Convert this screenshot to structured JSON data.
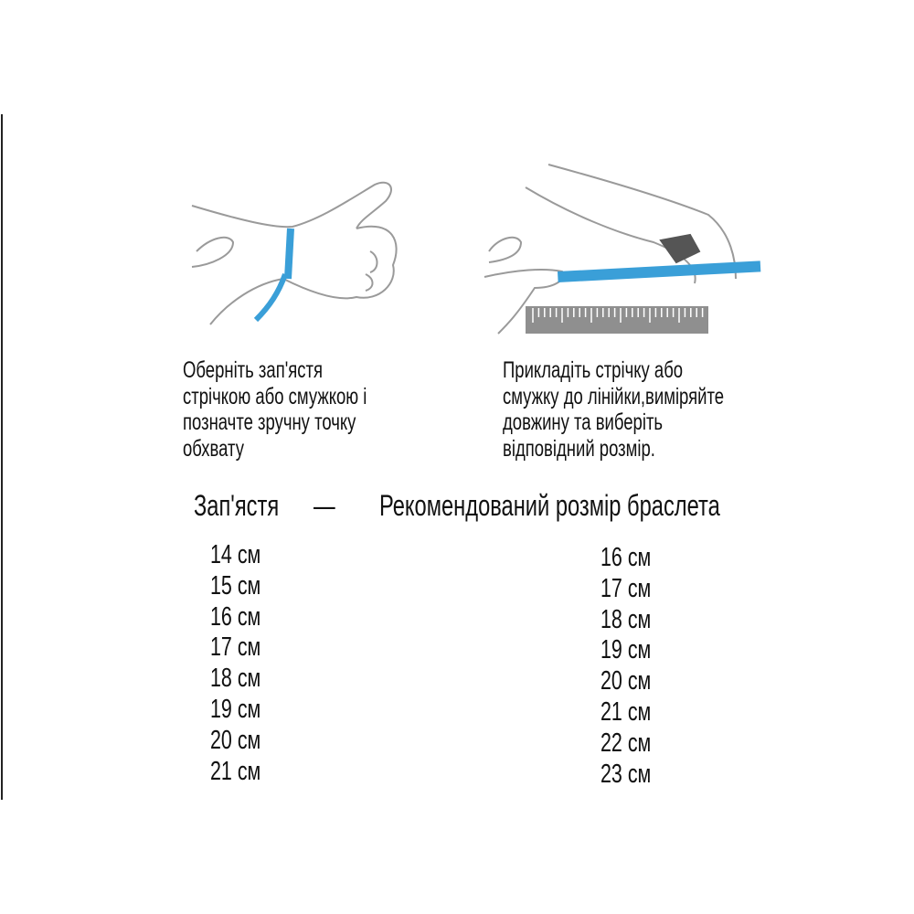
{
  "steps": [
    {
      "lines": [
        "Оберніть зап'ястя",
        "стрічкою або смужкою і",
        "позначте зручну точку",
        "обхвату"
      ]
    },
    {
      "lines": [
        "Прикладіть стрічку або",
        "смужку до лінійки,виміряйте",
        "довжину та виберіть",
        "відповідний розмір."
      ]
    }
  ],
  "table": {
    "header_left": "Зап'ястя",
    "header_dash": "—",
    "header_right": "Рекомендований розмір браслета",
    "wrist": [
      "14 см",
      "15 см",
      "16 см",
      "17 см",
      "18 см",
      "19 см",
      "20 см",
      "21 см"
    ],
    "bracelet": [
      "16 см",
      "17 см",
      "18 см",
      "19 см",
      "20 см",
      "21 см",
      "22 см",
      "23 см"
    ]
  },
  "colors": {
    "tape": "#3a9fd8",
    "ruler": "#8f8f8f"
  }
}
